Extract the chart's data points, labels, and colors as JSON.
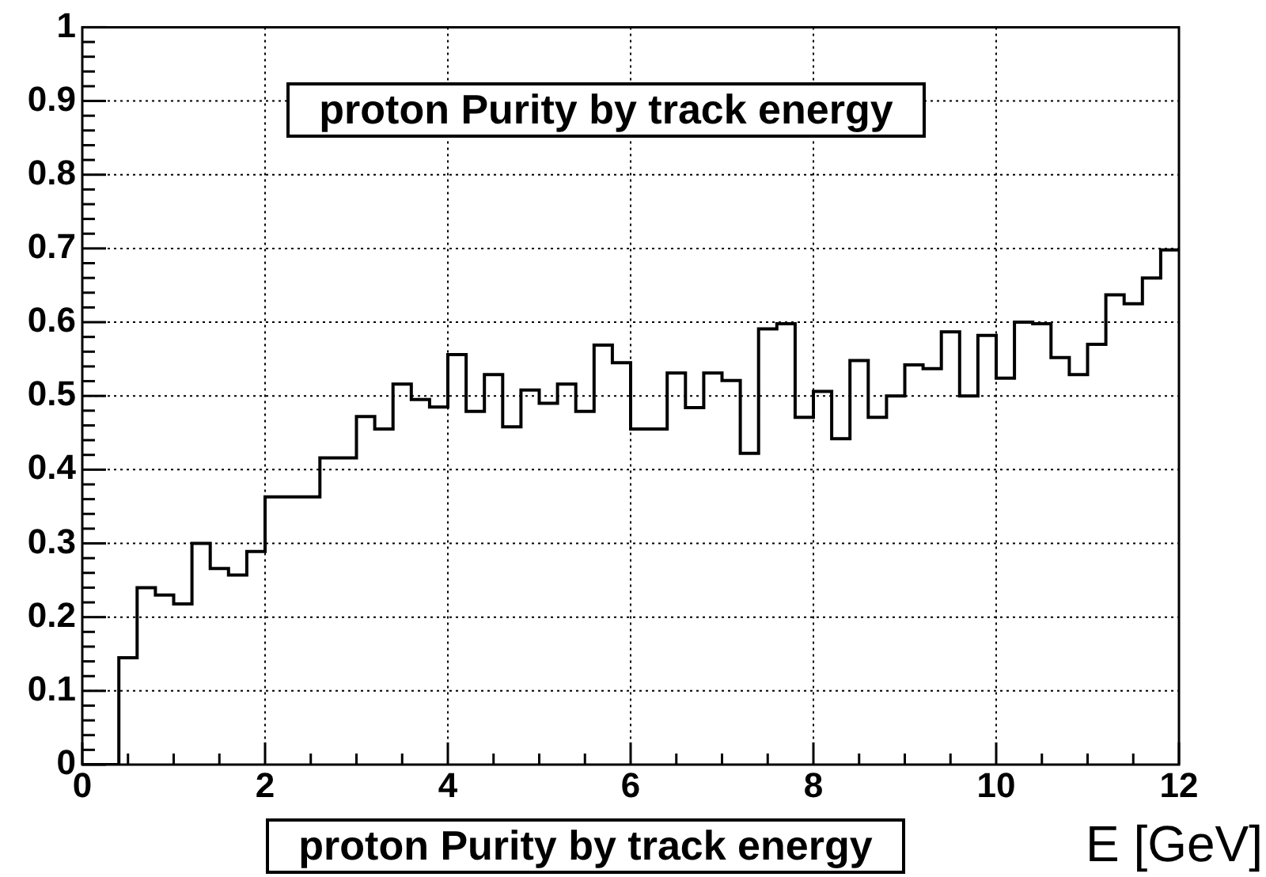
{
  "chart_data": {
    "type": "histogram",
    "title": "proton Purity by track energy",
    "xlabel": "E [GeV]",
    "annotations": [
      "proton Purity by track energy"
    ],
    "bins": [
      0,
      0.2,
      0.4,
      0.6,
      0.8,
      1,
      1.2,
      1.4,
      1.6,
      1.8,
      2,
      2.2,
      2.4,
      2.6,
      2.8,
      3,
      3.2,
      3.4,
      3.6,
      3.8,
      4,
      4.2,
      4.4,
      4.6,
      4.8,
      5,
      5.2,
      5.4,
      5.6,
      5.8,
      6,
      6.2,
      6.4,
      6.6,
      6.8,
      7,
      7.2,
      7.4,
      7.6,
      7.8,
      8,
      8.2,
      8.4,
      8.6,
      8.8,
      9,
      9.2,
      9.4,
      9.6,
      9.8,
      10,
      10.2,
      10.4,
      10.6,
      10.8,
      11,
      11.2,
      11.4,
      11.6,
      11.8,
      12
    ],
    "values": [
      0,
      0,
      0.145,
      0.24,
      0.23,
      0.218,
      0.3,
      0.266,
      0.257,
      0.289,
      0.363,
      0.363,
      0.363,
      0.416,
      0.416,
      0.472,
      0.455,
      0.516,
      0.495,
      0.485,
      0.556,
      0.479,
      0.529,
      0.458,
      0.508,
      0.49,
      0.516,
      0.479,
      0.569,
      0.545,
      0.455,
      0.455,
      0.531,
      0.484,
      0.531,
      0.521,
      0.422,
      0.591,
      0.598,
      0.471,
      0.506,
      0.442,
      0.548,
      0.471,
      0.5,
      0.542,
      0.537,
      0.587,
      0.5,
      0.582,
      0.524,
      0.6,
      0.598,
      0.552,
      0.529,
      0.57,
      0.637,
      0.625,
      0.66,
      0.698
    ],
    "color": "#000000",
    "xlim": [
      0,
      12
    ],
    "ylim": [
      0,
      1
    ],
    "xticks": [
      0,
      {
        "value": 0.5,
        "label": null
      },
      {
        "value": 1,
        "label": null
      },
      {
        "value": 1.5,
        "label": null
      },
      2,
      {
        "value": 2.5,
        "label": null
      },
      {
        "value": 3,
        "label": null
      },
      {
        "value": 3.5,
        "label": null
      },
      4,
      {
        "value": 4.5,
        "label": null
      },
      {
        "value": 5,
        "label": null
      },
      {
        "value": 5.5,
        "label": null
      },
      6,
      {
        "value": 6.5,
        "label": null
      },
      {
        "value": 7,
        "label": null
      },
      {
        "value": 7.5,
        "label": null
      },
      8,
      {
        "value": 8.5,
        "label": null
      },
      {
        "value": 9,
        "label": null
      },
      {
        "value": 9.5,
        "label": null
      },
      10,
      {
        "value": 10.5,
        "label": null
      },
      {
        "value": 11,
        "label": null
      },
      {
        "value": 11.5,
        "label": null
      },
      12
    ],
    "yticks": [
      0,
      {
        "value": 0.02,
        "label": null
      },
      {
        "value": 0.04,
        "label": null
      },
      {
        "value": 0.06,
        "label": null
      },
      {
        "value": 0.08,
        "label": null
      },
      0.1,
      {
        "value": 0.12,
        "label": null
      },
      {
        "value": 0.14,
        "label": null
      },
      {
        "value": 0.16,
        "label": null
      },
      {
        "value": 0.18,
        "label": null
      },
      0.2,
      {
        "value": 0.22,
        "label": null
      },
      {
        "value": 0.24,
        "label": null
      },
      {
        "value": 0.26,
        "label": null
      },
      {
        "value": 0.28,
        "label": null
      },
      0.3,
      {
        "value": 0.32,
        "label": null
      },
      {
        "value": 0.34,
        "label": null
      },
      {
        "value": 0.36,
        "label": null
      },
      {
        "value": 0.38,
        "label": null
      },
      0.4,
      {
        "value": 0.42,
        "label": null
      },
      {
        "value": 0.44,
        "label": null
      },
      {
        "value": 0.46,
        "label": null
      },
      {
        "value": 0.48,
        "label": null
      },
      0.5,
      {
        "value": 0.52,
        "label": null
      },
      {
        "value": 0.54,
        "label": null
      },
      {
        "value": 0.56,
        "label": null
      },
      {
        "value": 0.58,
        "label": null
      },
      0.6,
      {
        "value": 0.62,
        "label": null
      },
      {
        "value": 0.64,
        "label": null
      },
      {
        "value": 0.66,
        "label": null
      },
      {
        "value": 0.68,
        "label": null
      },
      0.7,
      {
        "value": 0.72,
        "label": null
      },
      {
        "value": 0.74,
        "label": null
      },
      {
        "value": 0.76,
        "label": null
      },
      {
        "value": 0.78,
        "label": null
      },
      0.8,
      {
        "value": 0.82,
        "label": null
      },
      {
        "value": 0.84,
        "label": null
      },
      {
        "value": 0.86,
        "label": null
      },
      {
        "value": 0.88,
        "label": null
      },
      0.9,
      {
        "value": 0.92,
        "label": null
      },
      {
        "value": 0.94,
        "label": null
      },
      {
        "value": 0.96,
        "label": null
      },
      {
        "value": 0.98,
        "label": null
      },
      1
    ],
    "grid": true
  }
}
